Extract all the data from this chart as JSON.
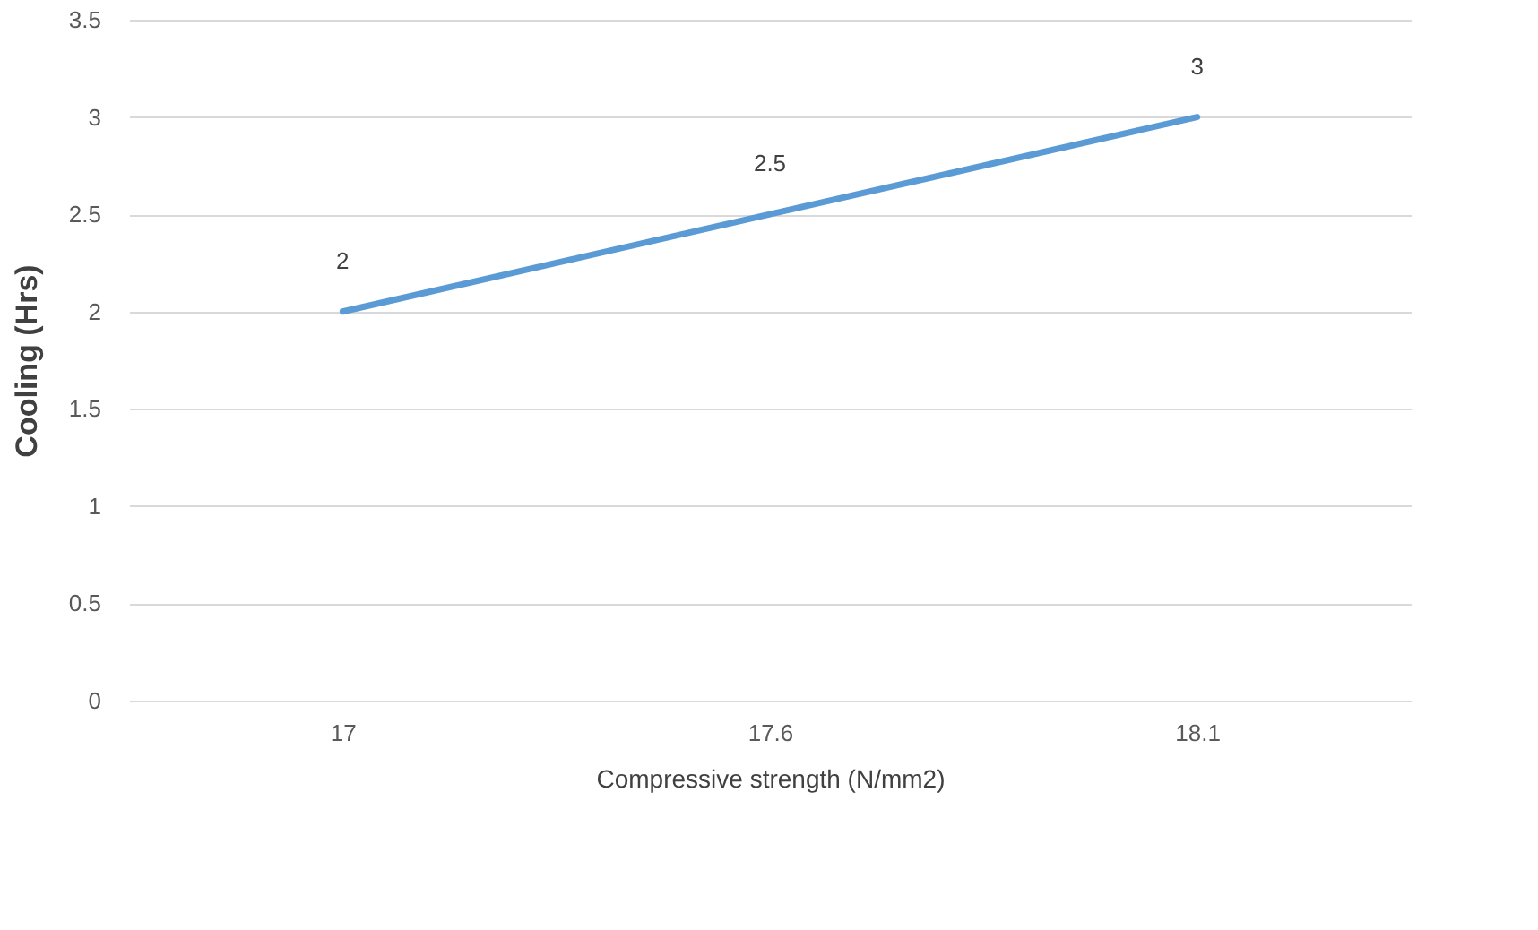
{
  "chart_data": {
    "type": "line",
    "xlabel": "Compressive strength (N/mm2)",
    "ylabel": "Cooling (Hrs)",
    "categories": [
      "17",
      "17.6",
      "18.1"
    ],
    "series": [
      {
        "color": "#5b9bd5",
        "values": [
          2,
          2.5,
          3
        ]
      }
    ],
    "ylim": [
      0,
      3.5
    ],
    "yticks": [
      0,
      0.5,
      1,
      1.5,
      2,
      2.5,
      3,
      3.5
    ],
    "grid": "y",
    "data_labels": true,
    "marker": "none",
    "line_style": "solid"
  }
}
